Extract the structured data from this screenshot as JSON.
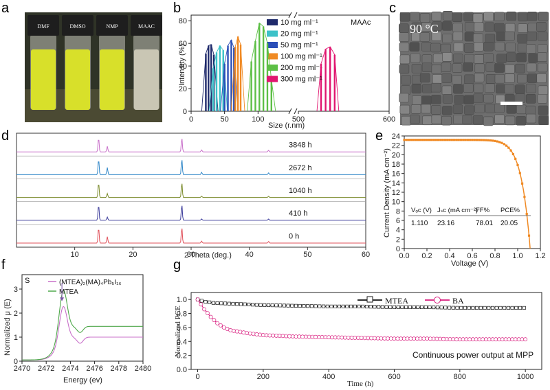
{
  "panels": {
    "a": {
      "label": "a",
      "vials": [
        "DMF",
        "DMSO",
        "NMP",
        "MAAC"
      ],
      "colors": {
        "yellow": "#d8e02a",
        "clear": "#c9c6b4",
        "cap": "#1e1e1e",
        "bg": "#2f3327"
      }
    },
    "b": {
      "label": "b",
      "corner": "MAAc",
      "chart_data": {
        "type": "bar",
        "title": "MAAc",
        "xlabel": "Size (r.nm)",
        "ylabel": "Intensity (%)",
        "xticks": [
          "0",
          "50",
          "100",
          "500",
          "600"
        ],
        "yticks": [
          "0",
          "20",
          "40",
          "60",
          "80"
        ],
        "ylim": [
          0,
          85
        ],
        "axis_break": true,
        "series": [
          {
            "name": "10 mg ml⁻¹",
            "color": "#1f2a6b",
            "x": [
              22,
              26,
              30,
              34
            ],
            "values": [
              51,
              58,
              59,
              50
            ]
          },
          {
            "name": "20 mg ml⁻¹",
            "color": "#3cc1c8",
            "x": [
              33,
              38,
              43,
              48
            ],
            "values": [
              38,
              52,
              58,
              54
            ]
          },
          {
            "name": "50 mg ml⁻¹",
            "color": "#2b4fb8",
            "x": [
              50,
              55,
              60,
              64
            ],
            "values": [
              42,
              58,
              63,
              56
            ]
          },
          {
            "name": "100 mg ml⁻¹",
            "color": "#f08a24",
            "x": [
              66,
              70,
              74
            ],
            "values": [
              57,
              66,
              59
            ]
          },
          {
            "name": "200 mg ml⁻¹",
            "color": "#5cbf45",
            "x": [
              90,
              96,
              102,
              108,
              114,
              120
            ],
            "values": [
              44,
              62,
              78,
              75,
              60,
              28
            ]
          },
          {
            "name": "300 mg ml⁻¹",
            "color": "#e0156f",
            "x": [
              525,
              530,
              535,
              540
            ],
            "values": [
              42,
              55,
              57,
              50
            ]
          }
        ]
      }
    },
    "c": {
      "label": "c",
      "temperature": "90 °C"
    },
    "d": {
      "label": "d",
      "chart_data": {
        "type": "line",
        "xlabel": "2 Theta (deg.)",
        "xticks": [
          "10",
          "20",
          "30",
          "40",
          "50",
          "60"
        ],
        "xlim": [
          0,
          60
        ],
        "peaks": [
          14.1,
          15.6,
          28.4,
          31.8,
          43.3
        ],
        "series": [
          {
            "name": "3848 h",
            "color": "#c86fc9",
            "heights": [
              0.9,
              0.35,
              0.9,
              0.12,
              0.1
            ]
          },
          {
            "name": "2672 h",
            "color": "#2f86c8",
            "heights": [
              1.0,
              0.45,
              1.0,
              0.15,
              0.12
            ]
          },
          {
            "name": "1040 h",
            "color": "#7a8a2a",
            "heights": [
              0.95,
              0.25,
              0.95,
              0.08,
              0.08
            ]
          },
          {
            "name": "410 h",
            "color": "#3a3a9a",
            "heights": [
              1.0,
              0.2,
              1.0,
              0.08,
              0.08
            ]
          },
          {
            "name": "0 h",
            "color": "#e0505a",
            "heights": [
              1.0,
              0.4,
              1.0,
              0.12,
              0.1
            ]
          }
        ]
      }
    },
    "e": {
      "label": "e",
      "chart_data": {
        "type": "line",
        "xlabel": "Voltage (V)",
        "ylabel": "Current Density (mA cm⁻²)",
        "xticks": [
          "0.0",
          "0.2",
          "0.4",
          "0.6",
          "0.8",
          "1.0",
          "1.2"
        ],
        "yticks": [
          "0",
          "2",
          "4",
          "6",
          "8",
          "10",
          "12",
          "14",
          "16",
          "18",
          "20",
          "22",
          "24"
        ],
        "xlim": [
          0,
          1.2
        ],
        "ylim": [
          0,
          24
        ],
        "color": "#f08a24",
        "jsc": 23.16,
        "voc": 1.11,
        "table": {
          "headers": [
            "Vₒc (V)",
            "Jₛc (mA cm⁻²)",
            "FF%",
            "PCE%"
          ],
          "values": [
            "1.110",
            "23.16",
            "78.01",
            "20.05"
          ]
        }
      }
    },
    "f": {
      "label": "f",
      "element": "S",
      "chart_data": {
        "type": "line",
        "xlabel": "Energy (ev)",
        "ylabel": "Normalized μ (E)",
        "xticks": [
          "2470",
          "2472",
          "2474",
          "2476",
          "2478",
          "2480"
        ],
        "yticks": [
          "0",
          "1",
          "2",
          "3"
        ],
        "xlim": [
          2470,
          2480
        ],
        "ylim": [
          0,
          3.6
        ],
        "series": [
          {
            "name": "(MTEA)₂(MA)₄Pb₅I₁₆",
            "color": "#c86fc9",
            "peak": 2.4,
            "tail": 0.95
          },
          {
            "name": "MTEA",
            "color": "#4ea84a",
            "peak": 3.15,
            "tail": 1.4
          }
        ]
      }
    },
    "g": {
      "label": "g",
      "annotation": "Continuous power output at MPP",
      "chart_data": {
        "type": "line",
        "xlabel": "Time (h)",
        "ylabel": "Normalized PCE",
        "xticks": [
          "0",
          "200",
          "400",
          "600",
          "800",
          "1000"
        ],
        "yticks": [
          "0.0",
          "0.2",
          "0.4",
          "0.6",
          "0.8",
          "1.0"
        ],
        "xlim": [
          -20,
          1050
        ],
        "ylim": [
          0,
          1.1
        ],
        "series": [
          {
            "name": "MTEA",
            "color": "#111111",
            "x": [
              0,
              20,
              50,
              100,
              200,
              300,
              400,
              500,
              600,
              700,
              800,
              900,
              1000
            ],
            "values": [
              1.0,
              0.97,
              0.95,
              0.94,
              0.92,
              0.91,
              0.9,
              0.9,
              0.89,
              0.89,
              0.88,
              0.88,
              0.88
            ]
          },
          {
            "name": "BA",
            "color": "#d81b7d",
            "x": [
              0,
              20,
              40,
              60,
              80,
              100,
              150,
              200,
              300,
              400,
              500,
              600,
              700,
              800,
              900,
              1000
            ],
            "values": [
              1.0,
              0.86,
              0.75,
              0.66,
              0.6,
              0.56,
              0.52,
              0.49,
              0.47,
              0.46,
              0.45,
              0.44,
              0.44,
              0.43,
              0.43,
              0.43
            ]
          }
        ]
      }
    }
  }
}
